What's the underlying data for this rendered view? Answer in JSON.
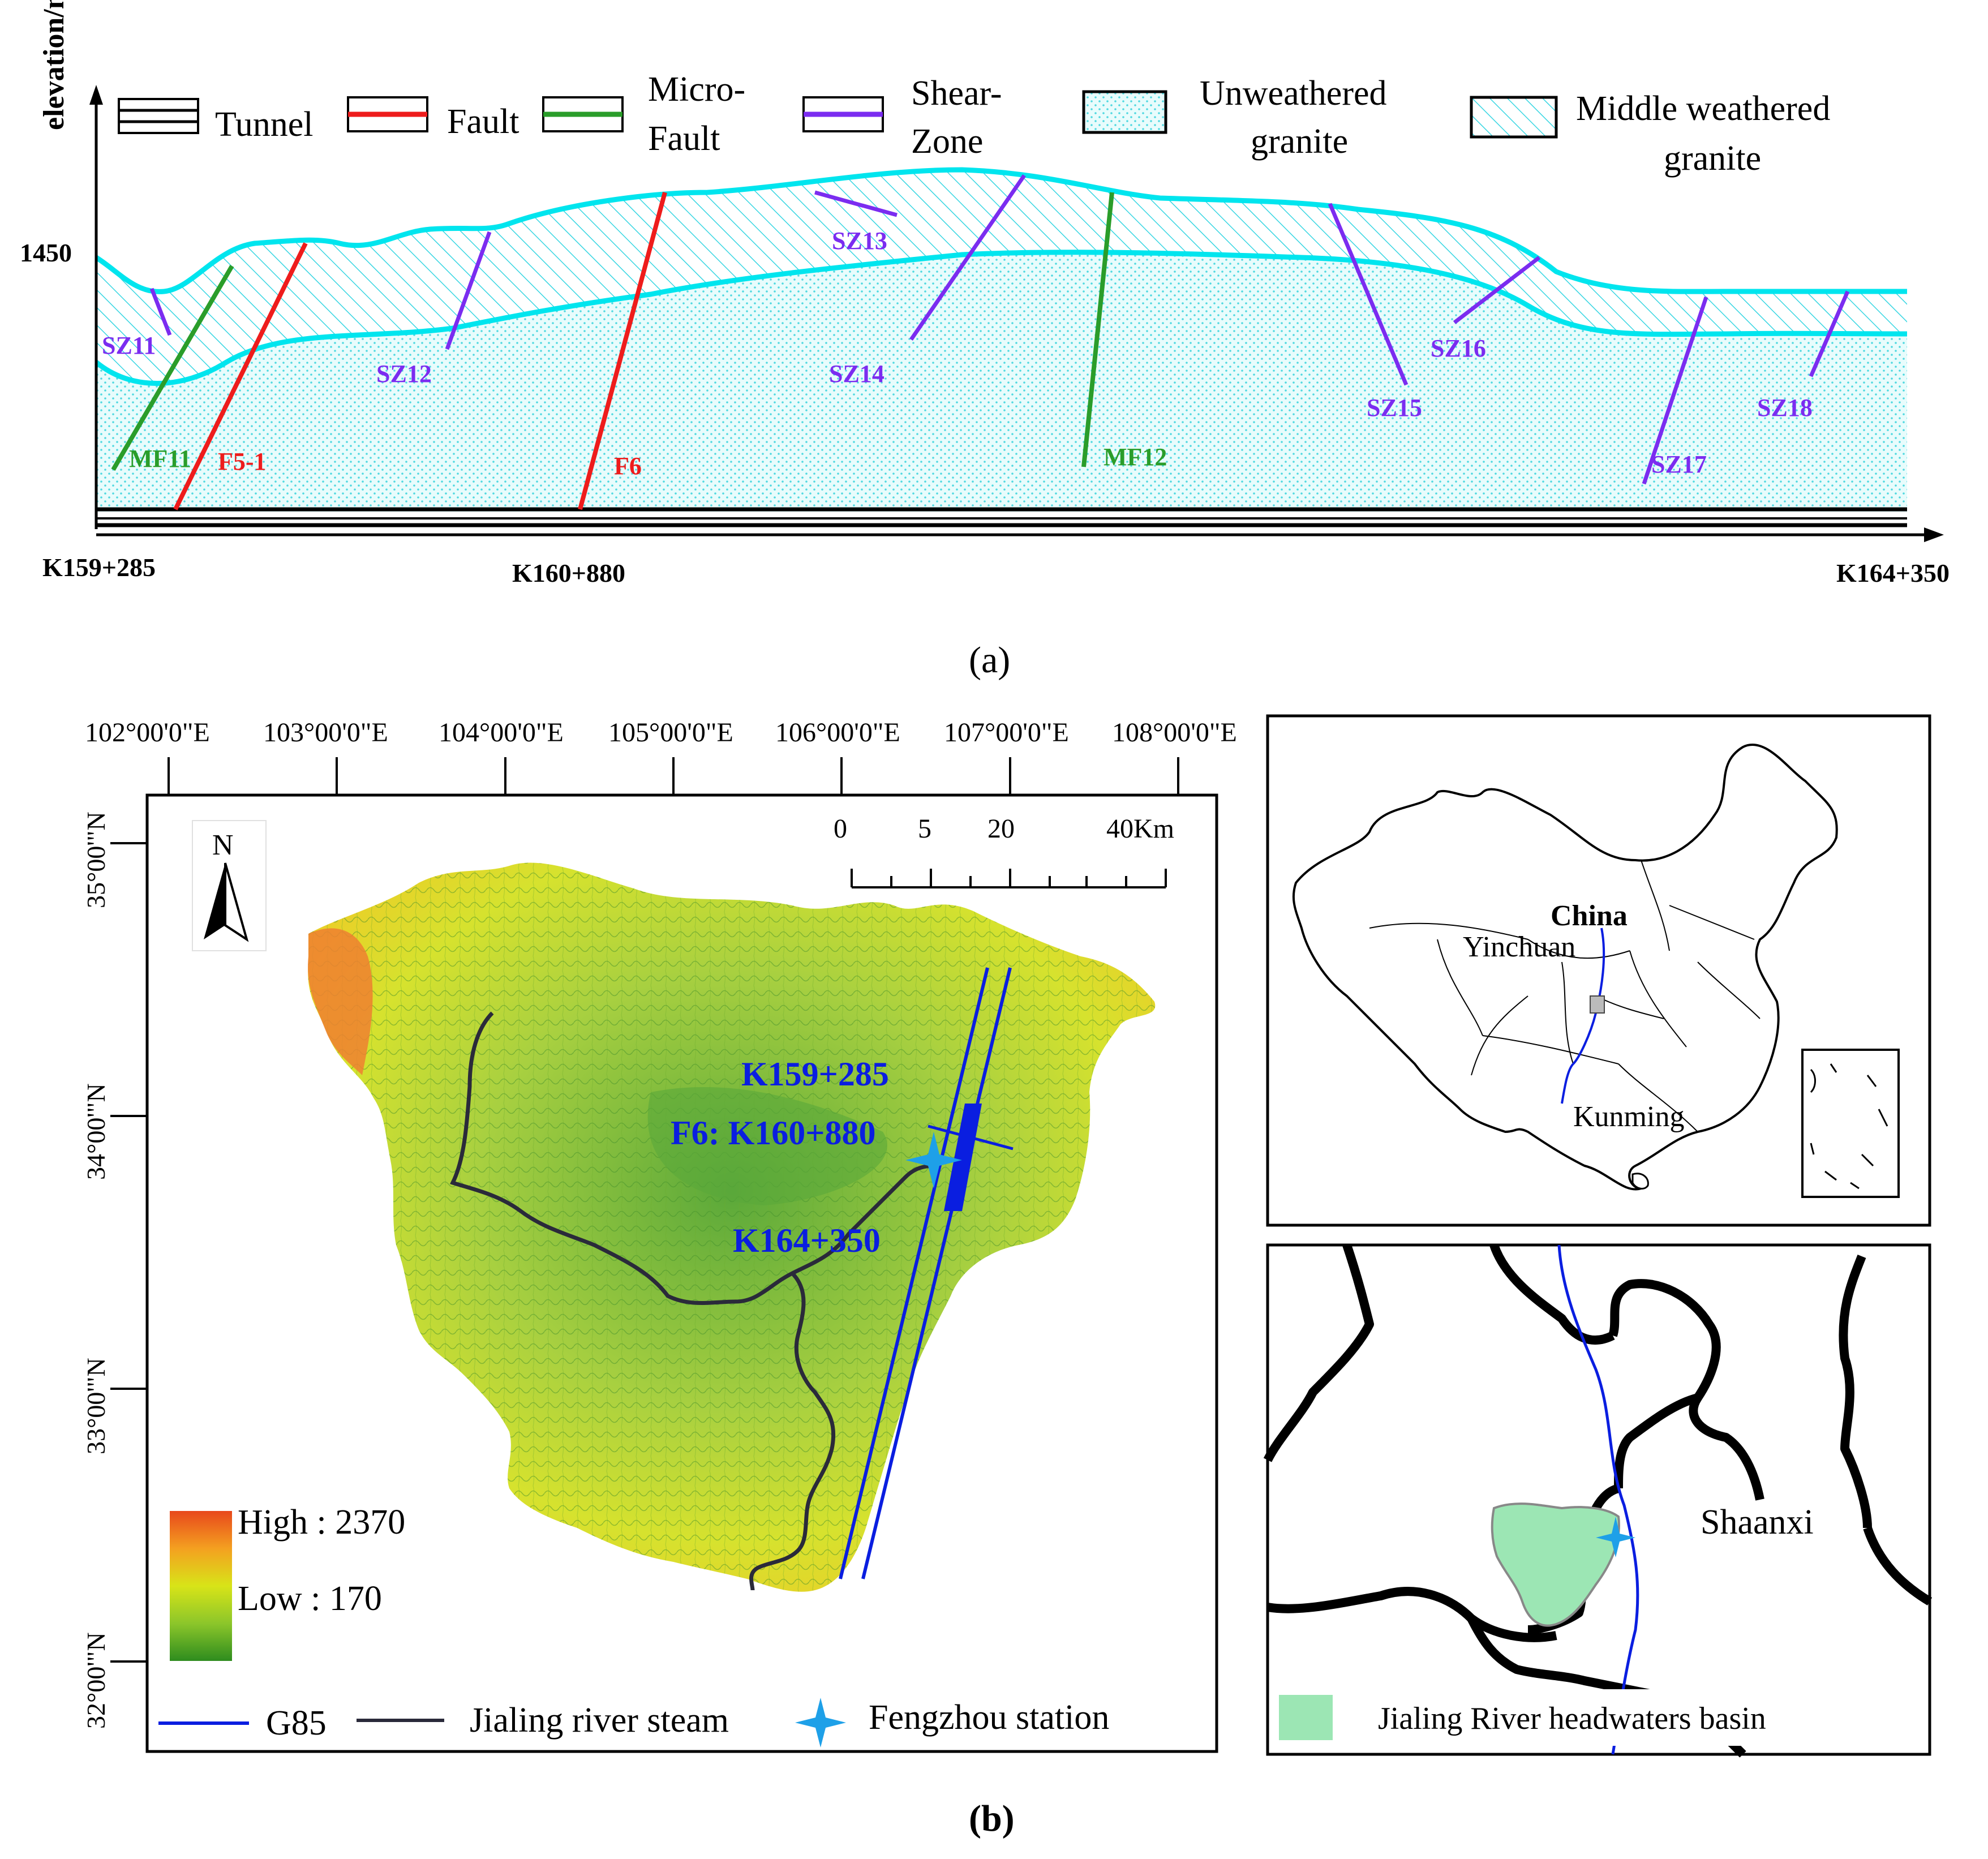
{
  "panel_a": {
    "caption": "(a)",
    "y_axis_label": "elevation/m",
    "y_tick": "1450",
    "x_ticks": [
      "K159+285",
      "K160+880",
      "K164+350"
    ],
    "legend": {
      "tunnel": "Tunnel",
      "fault": "Fault",
      "micro_fault_1": "Micro-",
      "micro_fault_2": "Fault",
      "shear_zone_1": "Shear-",
      "shear_zone_2": "Zone",
      "unweathered_1": "Unweathered",
      "unweathered_2": "granite",
      "middle_weathered_1": "Middle weathered",
      "middle_weathered_2": "granite"
    },
    "shear_zones": [
      "SZ11",
      "SZ12",
      "SZ13",
      "SZ14",
      "SZ15",
      "SZ16",
      "SZ17",
      "SZ18"
    ],
    "faults": [
      "F5-1",
      "F6"
    ],
    "micro_faults": [
      "MF11",
      "MF12"
    ],
    "colors": {
      "surface": "#00e5ee",
      "fill": "#e6fbfb",
      "fault": "#ee1c1c",
      "micro_fault": "#2a9d2a",
      "shear_zone": "#7b2cf0",
      "tunnel": "#000000"
    }
  },
  "panel_b": {
    "caption": "(b)",
    "longitudes": [
      "102°00'0\"E",
      "103°00'0\"E",
      "104°00'0\"E",
      "105°00'0\"E",
      "106°00'0\"E",
      "107°00'0\"E",
      "108°00'0\"E"
    ],
    "latitudes": [
      "35°00'\"N",
      "34°00'\"N",
      "33°00'\"N",
      "32°00'\"N"
    ],
    "north_arrow": "N",
    "scale_labels": [
      "0",
      "5",
      "20",
      "40Km"
    ],
    "elevation_high": "High : 2370",
    "elevation_low": "Low : 170",
    "route_labels": {
      "start": "K159+285",
      "fault": "F6: K160+880",
      "end": "K164+350"
    },
    "legend": {
      "g85": "G85",
      "river": "Jialing river steam",
      "station": "Fengzhou station"
    },
    "colors": {
      "route": "#0a1ee0",
      "river": "#2a2a3a",
      "station": "#1ea0e8",
      "high": "#e8481c",
      "mid": "#d8e418",
      "low": "#2e8c1e"
    }
  },
  "inset_china": {
    "country": "China",
    "cities": [
      "Yinchuan",
      "Kunming"
    ]
  },
  "inset_detail": {
    "province": "Shaanxi",
    "basin_legend": "Jialing River headwaters basin",
    "colors": {
      "basin": "#9ce6b4"
    }
  }
}
